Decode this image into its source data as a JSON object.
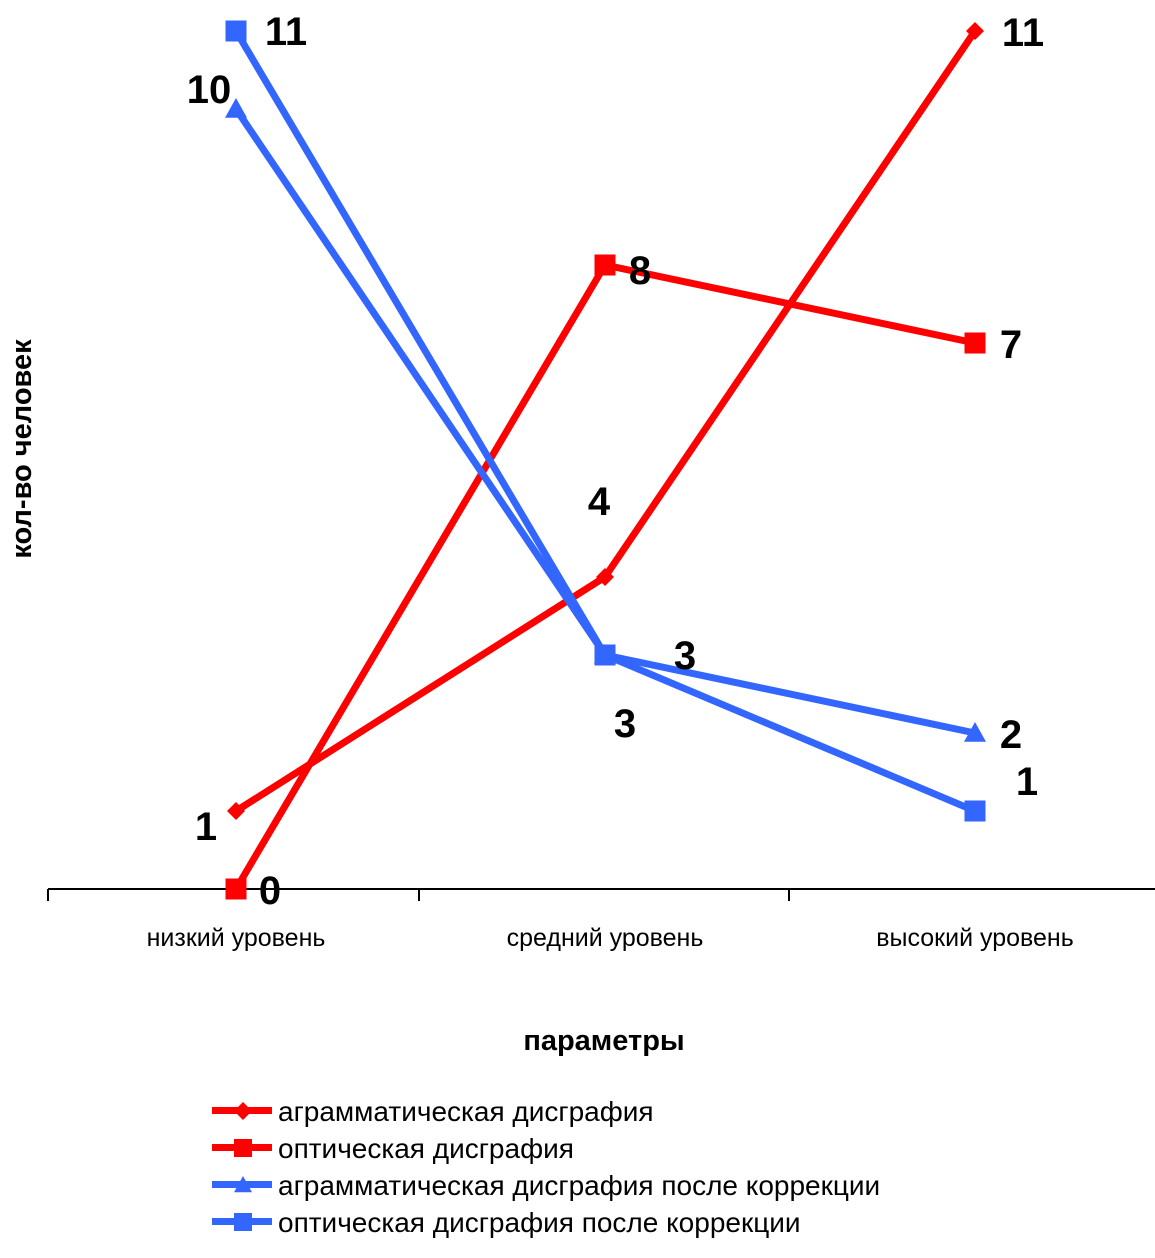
{
  "chart_data": {
    "type": "line",
    "categories": [
      "низкий уровень",
      "средний уровень",
      "высокий уровень"
    ],
    "xlabel": "параметры",
    "ylabel": "кол-во человек",
    "ylim": [
      0,
      11
    ],
    "grid": false,
    "legend_position": "bottom",
    "series": [
      {
        "name": "аграмматическая дисграфия",
        "values": [
          1,
          4,
          11
        ],
        "color": "#ff0000",
        "marker": "diamond"
      },
      {
        "name": "оптическая дисграфия",
        "values": [
          0,
          8,
          7
        ],
        "color": "#ff0000",
        "marker": "square"
      },
      {
        "name": "аграмматическая дисграфия после коррекции",
        "values": [
          10,
          3,
          2
        ],
        "color": "#3366ff",
        "marker": "triangle"
      },
      {
        "name": "оптическая дисграфия после коррекции",
        "values": [
          11,
          3,
          1
        ],
        "color": "#3366ff",
        "marker": "square"
      }
    ]
  }
}
